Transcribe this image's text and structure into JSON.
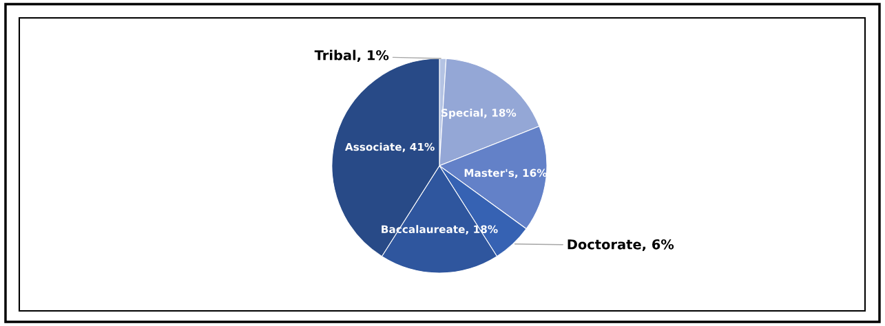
{
  "chart_data": {
    "type": "pie",
    "categories": [
      "Tribal, 1%",
      "Special, 18%",
      "Master's, 16%",
      "Doctorate, 6%",
      "Baccalaureate, 18%",
      "Associate, 41%"
    ],
    "values": [
      1,
      18,
      16,
      6,
      18,
      41
    ],
    "colors": [
      "#b4c3e3",
      "#94a7d6",
      "#6381c8",
      "#3662b3",
      "#2f569e",
      "#284a87"
    ],
    "legend": false
  }
}
